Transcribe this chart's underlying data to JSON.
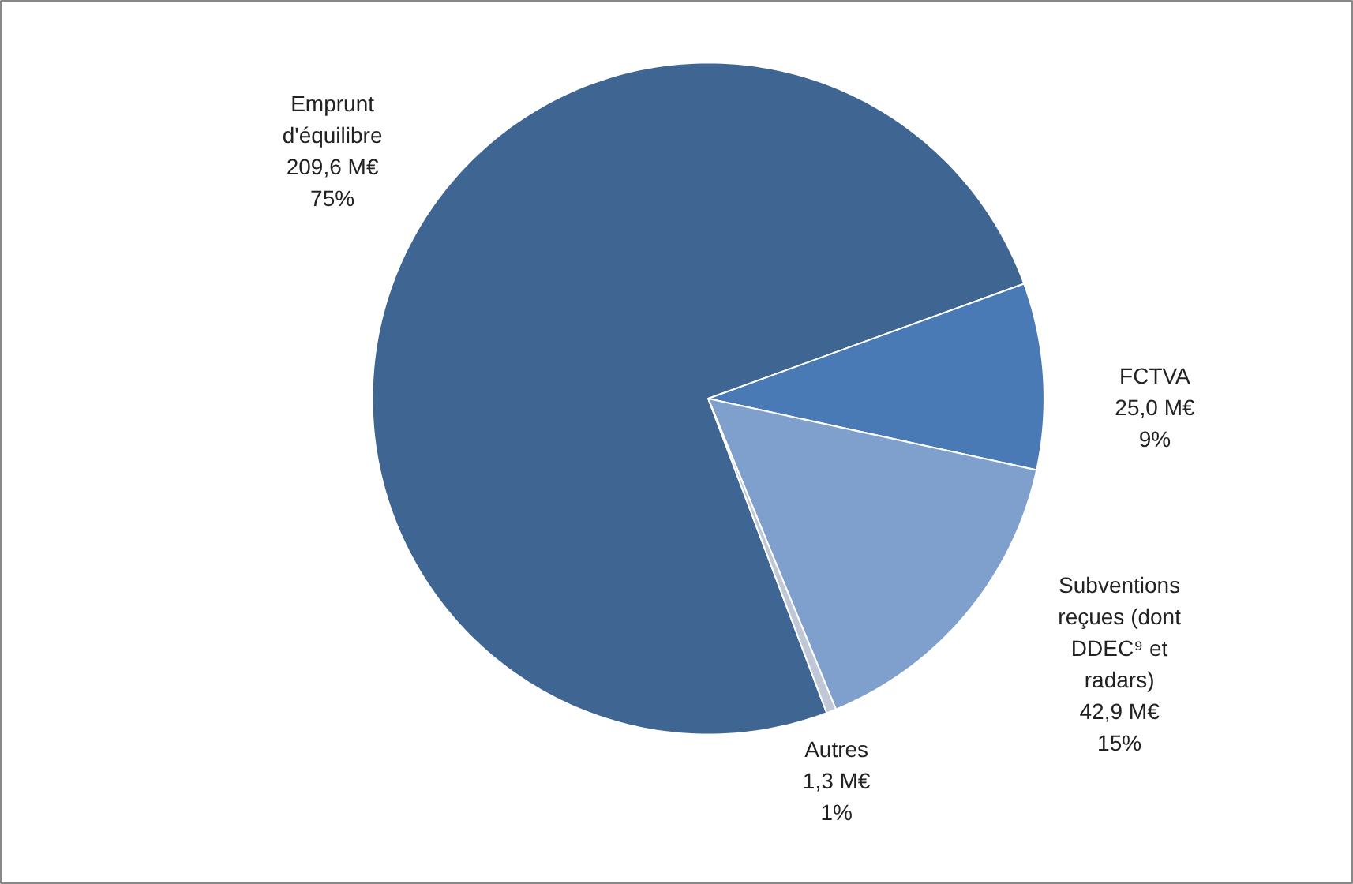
{
  "chart_data": {
    "type": "pie",
    "categories": [
      "Emprunt d'équilibre",
      "FCTVA",
      "Subventions reçues (dont DDEC⁹ et radars)",
      "Autres"
    ],
    "values": [
      209.6,
      25.0,
      42.9,
      1.3
    ],
    "value_labels": [
      "209,6 M€\n75%",
      "25,0 M€\n9%",
      "42,9 M€\n15%",
      "1,3 M€\n1%"
    ],
    "colors": [
      "#3f6592",
      "#4a7ab5",
      "#7f9fcc",
      "#c0c8d8"
    ]
  }
}
